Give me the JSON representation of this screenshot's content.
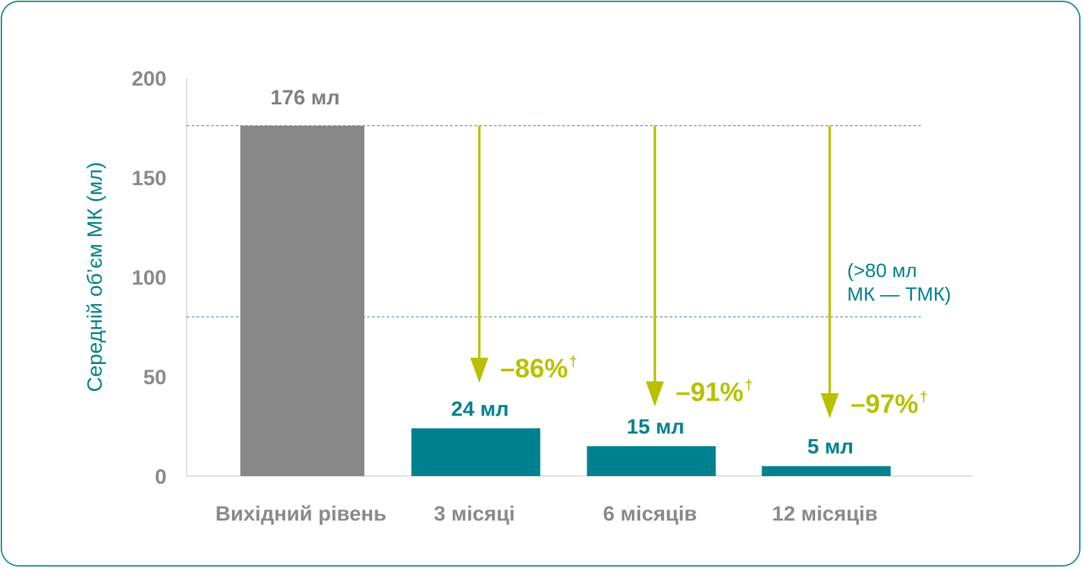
{
  "colors": {
    "frame": "#1d8f95",
    "baseline_bar": "#878787",
    "bar": "#008190",
    "arrow": "#b8c000",
    "axis_text": "#8a8a8a",
    "ylabel": "#008190",
    "refline": "#2b7f86"
  },
  "chart_data": {
    "type": "bar",
    "title": "",
    "ylabel": "Середній об’єм МК (мл)",
    "xlabel": "",
    "ylim": [
      0,
      200
    ],
    "yticks": [
      "0",
      "50",
      "100",
      "150",
      "200"
    ],
    "categories": [
      "Вихідний рівень",
      "3 місяці",
      "6 місяців",
      "12 місяців"
    ],
    "values": [
      176,
      24,
      15,
      5
    ],
    "value_labels": [
      "176 мл",
      "24 мл",
      "15 мл",
      "5 мл"
    ],
    "reductions": [
      "–86%",
      "–91%",
      "–97%"
    ],
    "reduction_mark": "†",
    "reference_lines": [
      176,
      80
    ],
    "threshold_note": [
      "(>80 мл",
      "МК — ТМК)"
    ],
    "grid": false,
    "legend": "none"
  }
}
